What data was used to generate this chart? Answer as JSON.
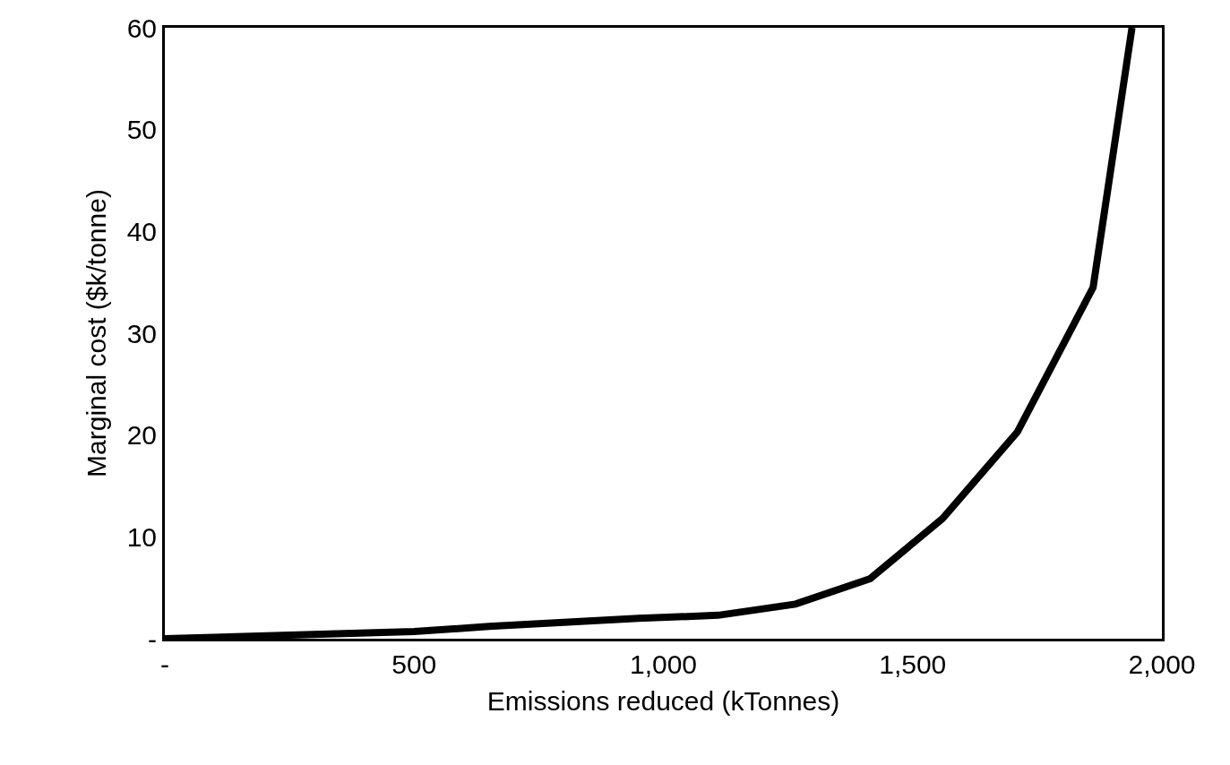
{
  "chart_data": {
    "type": "line",
    "xlabel": "Emissions reduced (kTonnes)",
    "ylabel": "Marginal cost ($k/tonne)",
    "x": [
      0,
      500,
      650,
      800,
      950,
      1110,
      1265,
      1415,
      1560,
      1710,
      1862,
      1940
    ],
    "series": [
      {
        "color": "#000000",
        "values": [
          0,
          0.7,
          1.2,
          1.6,
          2.0,
          2.3,
          3.4,
          5.9,
          11.8,
          20.3,
          34.5,
          60
        ]
      }
    ],
    "xlim": [
      0,
      2000
    ],
    "ylim": [
      0,
      60
    ],
    "xticks": [
      {
        "value": 0,
        "label": "-"
      },
      {
        "value": 500,
        "label": "500"
      },
      {
        "value": 1000,
        "label": "1,000"
      },
      {
        "value": 1500,
        "label": "1,500"
      },
      {
        "value": 2000,
        "label": "2,000"
      }
    ],
    "yticks": [
      {
        "value": 0,
        "label": "-"
      },
      10,
      20,
      30,
      40,
      50,
      60
    ],
    "marker": "none",
    "line_style": "solid"
  }
}
